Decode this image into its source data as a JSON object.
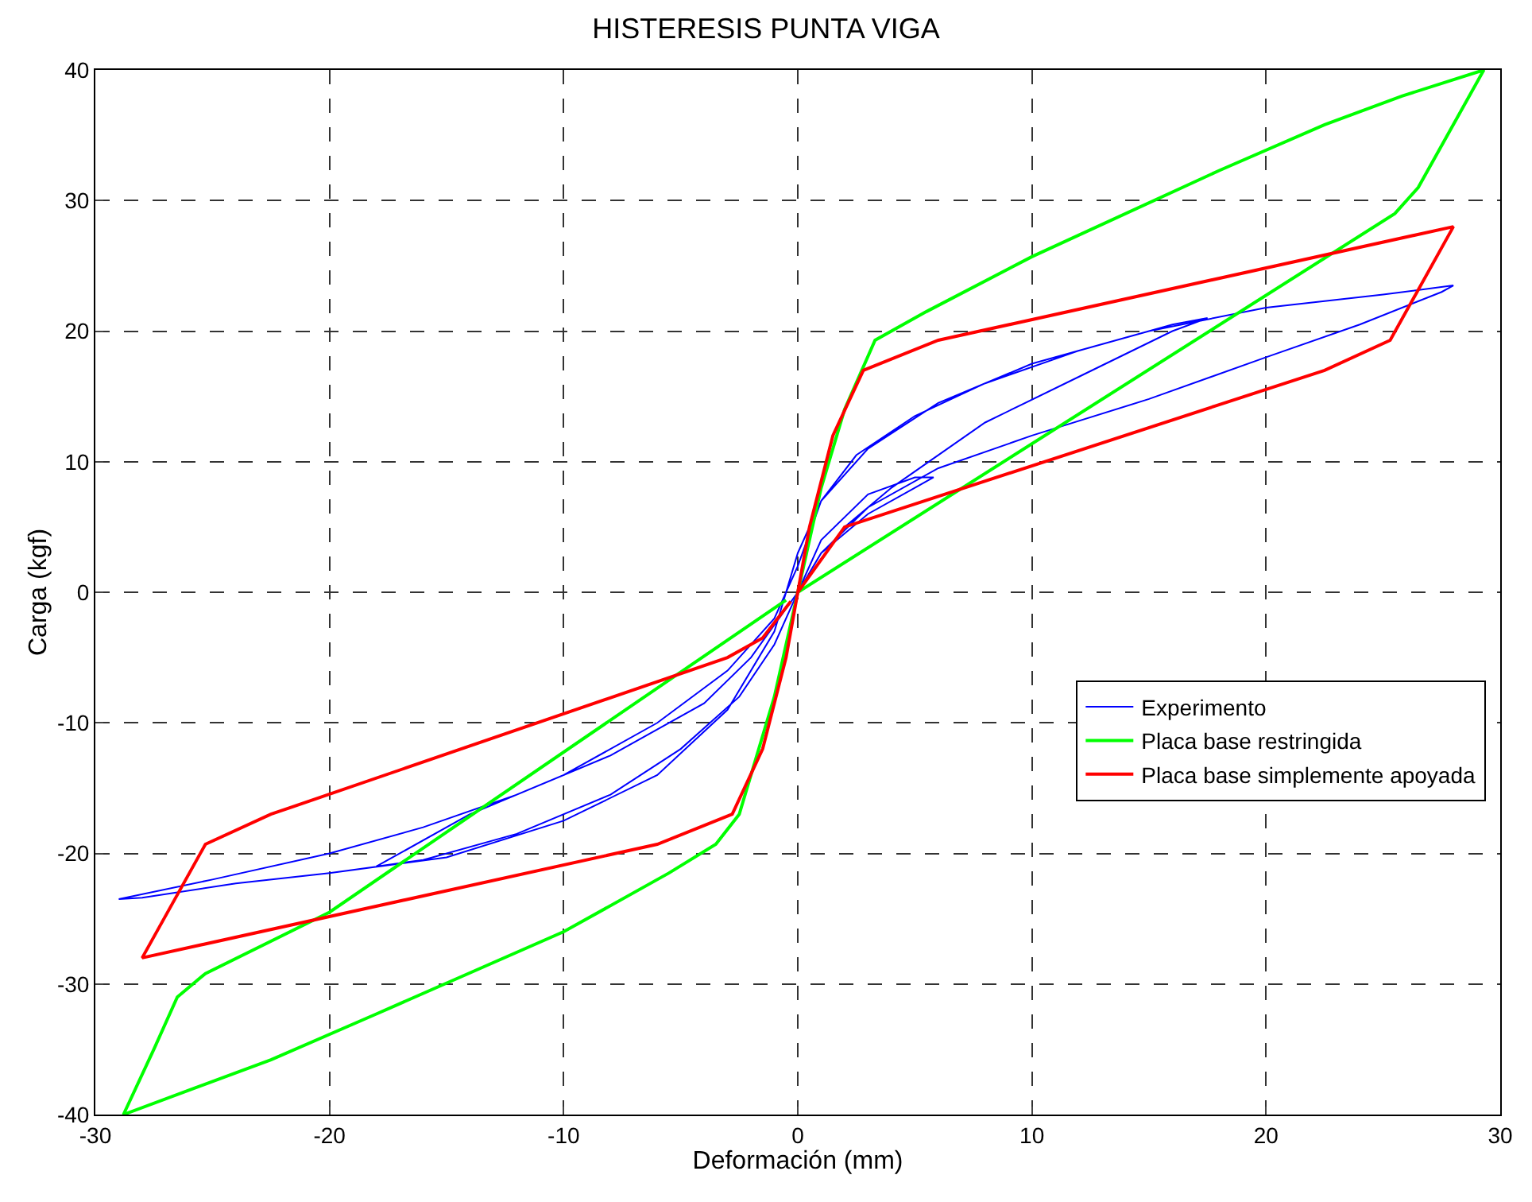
{
  "chart_data": {
    "type": "line",
    "title": "HISTERESIS PUNTA VIGA",
    "xlabel": "Deformación (mm)",
    "ylabel": "Carga (kgf)",
    "xlim": [
      -30,
      30
    ],
    "xticks": [
      -30,
      -20,
      -10,
      0,
      10,
      20,
      30
    ],
    "ylim": [
      -40,
      40
    ],
    "yticks": [
      -40,
      -30,
      -20,
      -10,
      0,
      10,
      20,
      30,
      40
    ],
    "grid": true,
    "legend": "bottom right",
    "marker": "none",
    "line_style": "solid",
    "series": [
      {
        "name": "Experimento",
        "color": "#0000ff",
        "x": [
          0,
          1,
          3,
          5,
          5.8,
          5,
          3,
          1,
          0,
          -1,
          -2.5,
          -5,
          -8,
          -12,
          -16,
          -18,
          -17.5,
          -14,
          -10,
          -6,
          -3,
          -1,
          0,
          1,
          2.5,
          5,
          8,
          12,
          16,
          17.5,
          16,
          12,
          8,
          4,
          2,
          0,
          -2,
          -4,
          -8,
          -12,
          -16,
          -20,
          -25,
          -29,
          -28,
          -24,
          -20,
          -15,
          -10,
          -6,
          -3,
          -1,
          0,
          1,
          3,
          6,
          10,
          15,
          20,
          25,
          28,
          27.5,
          24,
          20,
          15,
          10,
          6,
          3,
          1,
          0.2
        ],
        "values": [
          0,
          4,
          7.5,
          8.8,
          8.8,
          8,
          6,
          3,
          0,
          -4,
          -8,
          -12,
          -15.5,
          -18.5,
          -20.5,
          -21,
          -20.5,
          -17,
          -14,
          -10,
          -6,
          -2,
          2,
          7,
          10.5,
          13.5,
          16,
          18.5,
          20.5,
          21,
          20,
          16.5,
          13,
          8,
          5,
          0,
          -5,
          -8.5,
          -12.5,
          -15.5,
          -18,
          -20,
          -22,
          -23.5,
          -23.4,
          -22.3,
          -21.5,
          -20.3,
          -17.5,
          -14,
          -9,
          -3,
          3,
          7,
          11,
          14.5,
          17.5,
          20,
          21.8,
          22.8,
          23.5,
          23,
          20.5,
          18,
          14.8,
          12,
          9.5,
          6.5,
          3,
          0.6
        ]
      },
      {
        "name": "Placa base restringida",
        "color": "#00ff00",
        "x": [
          0,
          1,
          2,
          3.3,
          5.5,
          10,
          18,
          22.5,
          25.8,
          29.3,
          26.5,
          25.5,
          0,
          -1,
          -2.5,
          -3.5,
          -5.5,
          -10,
          -18,
          -22.5,
          -25.8,
          -28.8,
          -27.5,
          -26.5,
          -25.3,
          -20,
          -0.5
        ],
        "values": [
          0,
          8,
          14,
          19.3,
          21.5,
          25.7,
          32.3,
          35.8,
          38,
          40,
          31,
          29,
          0,
          -8,
          -17,
          -19.3,
          -21.5,
          -26,
          -32.3,
          -35.8,
          -38,
          -40,
          -35,
          -31,
          -29.2,
          -24.5,
          -0.6
        ]
      },
      {
        "name": "Placa base simplemente apoyada",
        "color": "#ff0000",
        "x": [
          0,
          0.5,
          1.5,
          2.8,
          6,
          28,
          25.3,
          22.5,
          2,
          0,
          -0.5,
          -1.5,
          -2.8,
          -6,
          -28,
          -25.3,
          -22.5,
          -3,
          -1.5,
          -0.3
        ],
        "values": [
          0,
          5,
          12,
          17,
          19.3,
          28,
          19.3,
          17,
          5,
          0,
          -5,
          -12,
          -17,
          -19.3,
          -28,
          -19.3,
          -17,
          -5,
          -3.5,
          -0.7
        ]
      }
    ]
  }
}
